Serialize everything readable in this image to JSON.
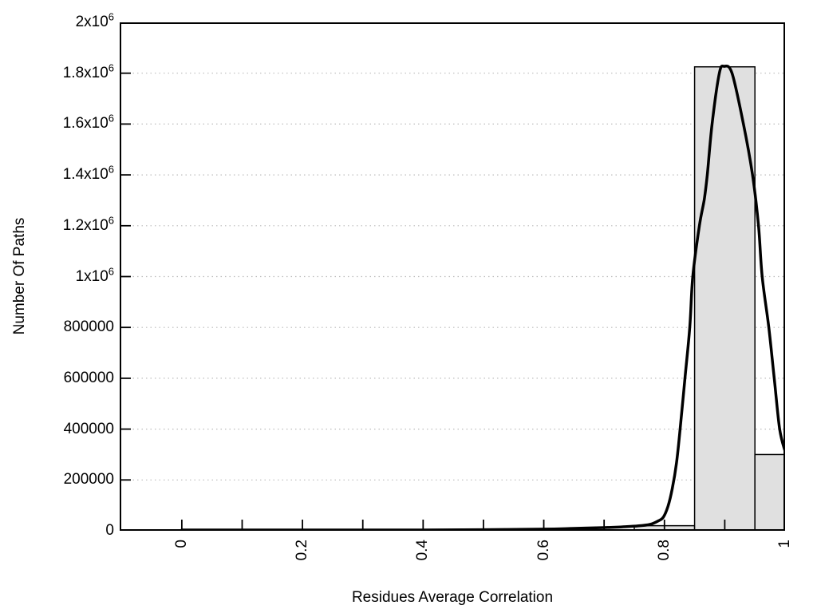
{
  "page": {
    "background": "#ffffff",
    "title": ""
  },
  "chart_data": {
    "type": "bar",
    "subtype": "histogram-with-smoothed-curve",
    "title": "",
    "xlabel": "Residues Average Correlation",
    "ylabel": "Number Of Paths",
    "xlim": [
      -0.103,
      1.0
    ],
    "ylim": [
      0,
      2000000
    ],
    "legend": "none",
    "grid": {
      "horizontal": true,
      "vertical": false,
      "style": "dotted",
      "color": "#bcbcbc"
    },
    "x_ticks": {
      "rotation_deg": -90,
      "minor_values": [
        0,
        0.1,
        0.2,
        0.3,
        0.4,
        0.5,
        0.6,
        0.7,
        0.8,
        0.9,
        1.0
      ],
      "major": [
        {
          "v": 0,
          "label": "0"
        },
        {
          "v": 0.2,
          "label": "0.2"
        },
        {
          "v": 0.4,
          "label": "0.4"
        },
        {
          "v": 0.6,
          "label": "0.6"
        },
        {
          "v": 0.8,
          "label": "0.8"
        },
        {
          "v": 1,
          "label": "1"
        }
      ]
    },
    "y_ticks": [
      {
        "v": 0,
        "label": "0"
      },
      {
        "v": 200000,
        "label": "200000"
      },
      {
        "v": 400000,
        "label": "400000"
      },
      {
        "v": 600000,
        "label": "600000"
      },
      {
        "v": 800000,
        "label": "800000"
      },
      {
        "v": 1000000,
        "label": "1x10^6"
      },
      {
        "v": 1200000,
        "label": "1.2x10^6"
      },
      {
        "v": 1400000,
        "label": "1.4x10^6"
      },
      {
        "v": 1600000,
        "label": "1.6x10^6"
      },
      {
        "v": 1800000,
        "label": "1.8x10^6"
      },
      {
        "v": 2000000,
        "label": "2x10^6"
      }
    ],
    "histogram": {
      "name": "paths-per-correlation-bin",
      "bin_width": 0.1,
      "bin_centers": [
        0.8,
        0.9,
        1.0
      ],
      "values": [
        20000,
        1825000,
        300000
      ],
      "clip_max_x": 1.0,
      "fill": "#e0e0e0",
      "stroke": "#000000"
    },
    "series": [
      {
        "name": "smoothed-distribution-curve",
        "type": "line",
        "color": "#000000",
        "points": [
          [
            0.0,
            3000
          ],
          [
            0.1,
            3000
          ],
          [
            0.2,
            3000
          ],
          [
            0.3,
            3000
          ],
          [
            0.4,
            3000
          ],
          [
            0.5,
            4500
          ],
          [
            0.6,
            6500
          ],
          [
            0.65,
            9500
          ],
          [
            0.7,
            12500
          ],
          [
            0.73,
            15500
          ],
          [
            0.756,
            19000
          ],
          [
            0.776,
            25000
          ],
          [
            0.789,
            38000
          ],
          [
            0.798,
            53000
          ],
          [
            0.806,
            97000
          ],
          [
            0.813,
            166000
          ],
          [
            0.82,
            267000
          ],
          [
            0.826,
            399000
          ],
          [
            0.834,
            600000
          ],
          [
            0.842,
            800000
          ],
          [
            0.847,
            1000000
          ],
          [
            0.858,
            1200000
          ],
          [
            0.866,
            1303000
          ],
          [
            0.871,
            1400000
          ],
          [
            0.879,
            1600000
          ],
          [
            0.891,
            1800000
          ],
          [
            0.899,
            1827000
          ],
          [
            0.912,
            1800000
          ],
          [
            0.931,
            1600000
          ],
          [
            0.946,
            1400000
          ],
          [
            0.956,
            1200000
          ],
          [
            0.962,
            1000000
          ],
          [
            0.973,
            800000
          ],
          [
            0.982,
            600000
          ],
          [
            0.991,
            400000
          ],
          [
            1.0,
            312000
          ]
        ]
      }
    ],
    "colors": {
      "axis": "#000000",
      "curve": "#000000",
      "bar_fill": "#e0e0e0",
      "bar_stroke": "#000000",
      "grid": "#bcbcbc",
      "background": "#ffffff"
    }
  }
}
